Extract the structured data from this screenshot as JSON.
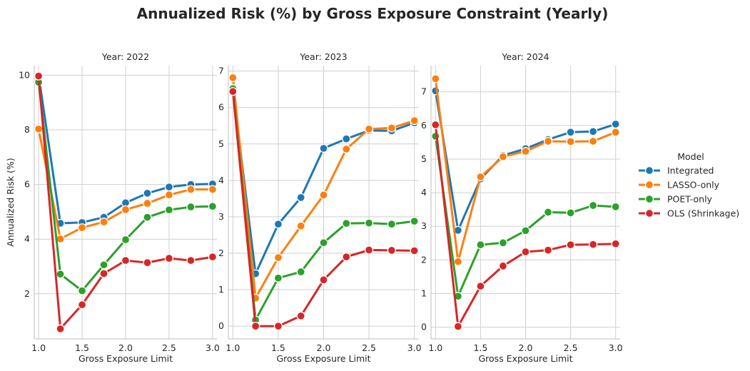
{
  "title": "Annualized Risk (%) by Gross Exposure Constraint (Yearly)",
  "legend": {
    "title": "Model"
  },
  "chart_data": [
    {
      "type": "line",
      "title": "Year: 2022",
      "xlabel": "Gross Exposure Limit",
      "ylabel": "Annualized Risk (%)",
      "x": [
        1.0,
        1.25,
        1.5,
        1.75,
        2.0,
        2.25,
        2.5,
        2.75,
        3.0
      ],
      "xlim": [
        0.95,
        3.05
      ],
      "ylim": [
        0.35,
        10.35
      ],
      "xticks": [
        1.0,
        1.5,
        2.0,
        2.5,
        3.0
      ],
      "xtick_labels": [
        "1.0",
        "1.5",
        "2.0",
        "2.5",
        "3.0"
      ],
      "yticks": [
        2,
        4,
        6,
        8,
        10
      ],
      "ytick_labels": [
        "2",
        "4",
        "6",
        "8",
        "10"
      ],
      "series": [
        {
          "name": "Integrated",
          "color": "#1f77b4",
          "values": [
            10.0,
            4.58,
            4.61,
            4.8,
            5.33,
            5.68,
            5.91,
            6.0,
            6.02
          ]
        },
        {
          "name": "LASSO-only",
          "color": "#ff7f0e",
          "values": [
            8.03,
            4.01,
            4.42,
            4.63,
            5.08,
            5.31,
            5.62,
            5.82,
            5.82
          ]
        },
        {
          "name": "POET-only",
          "color": "#2ca02c",
          "values": [
            9.74,
            2.72,
            2.11,
            3.06,
            3.98,
            4.8,
            5.07,
            5.18,
            5.2
          ]
        },
        {
          "name": "OLS (Shrinkage)",
          "color": "#d62728",
          "values": [
            9.97,
            0.72,
            1.6,
            2.74,
            3.22,
            3.14,
            3.3,
            3.22,
            3.35
          ]
        }
      ],
      "grid": true
    },
    {
      "type": "line",
      "title": "Year: 2023",
      "xlabel": "Gross Exposure Limit",
      "ylabel": "",
      "x": [
        1.0,
        1.25,
        1.5,
        1.75,
        2.0,
        2.25,
        2.5,
        2.75,
        3.0
      ],
      "xlim": [
        0.95,
        3.05
      ],
      "ylim": [
        -0.35,
        7.15
      ],
      "xticks": [
        1.0,
        1.5,
        2.0,
        2.5,
        3.0
      ],
      "xtick_labels": [
        "1.0",
        "1.5",
        "2.0",
        "2.5",
        "3.0"
      ],
      "yticks": [
        0,
        1,
        2,
        3,
        4,
        5,
        6,
        7
      ],
      "ytick_labels": [
        "0",
        "1",
        "2",
        "3",
        "4",
        "5",
        "6",
        "7"
      ],
      "series": [
        {
          "name": "Integrated",
          "color": "#1f77b4",
          "values": [
            6.5,
            1.44,
            2.8,
            3.53,
            4.88,
            5.14,
            5.37,
            5.36,
            5.58
          ]
        },
        {
          "name": "LASSO-only",
          "color": "#ff7f0e",
          "values": [
            6.82,
            0.77,
            1.88,
            2.75,
            3.6,
            4.86,
            5.41,
            5.44,
            5.64
          ]
        },
        {
          "name": "POET-only",
          "color": "#2ca02c",
          "values": [
            6.52,
            0.17,
            1.32,
            1.49,
            2.29,
            2.82,
            2.83,
            2.8,
            2.88
          ]
        },
        {
          "name": "OLS (Shrinkage)",
          "color": "#d62728",
          "values": [
            6.44,
            0.0,
            0.0,
            0.28,
            1.27,
            1.9,
            2.09,
            2.08,
            2.07
          ]
        }
      ],
      "grid": true
    },
    {
      "type": "line",
      "title": "Year: 2024",
      "xlabel": "Gross Exposure Limit",
      "ylabel": "",
      "x": [
        1.0,
        1.25,
        1.5,
        1.75,
        2.0,
        2.25,
        2.5,
        2.75,
        3.0
      ],
      "xlim": [
        0.95,
        3.05
      ],
      "ylim": [
        -0.35,
        7.78
      ],
      "xticks": [
        1.0,
        1.5,
        2.0,
        2.5,
        3.0
      ],
      "xtick_labels": [
        "1.0",
        "1.5",
        "2.0",
        "2.5",
        "3.0"
      ],
      "yticks": [
        0,
        1,
        2,
        3,
        4,
        5,
        6,
        7
      ],
      "ytick_labels": [
        "0",
        "1",
        "2",
        "3",
        "4",
        "5",
        "6",
        "7"
      ],
      "series": [
        {
          "name": "Integrated",
          "color": "#1f77b4",
          "values": [
            7.03,
            2.88,
            4.41,
            5.11,
            5.31,
            5.58,
            5.8,
            5.82,
            6.04
          ]
        },
        {
          "name": "LASSO-only",
          "color": "#ff7f0e",
          "values": [
            7.39,
            1.95,
            4.47,
            5.07,
            5.23,
            5.53,
            5.52,
            5.53,
            5.8
          ]
        },
        {
          "name": "POET-only",
          "color": "#2ca02c",
          "values": [
            5.68,
            0.92,
            2.45,
            2.51,
            2.87,
            3.42,
            3.4,
            3.62,
            3.58
          ]
        },
        {
          "name": "OLS (Shrinkage)",
          "color": "#d62728",
          "values": [
            6.02,
            0.02,
            1.22,
            1.82,
            2.24,
            2.29,
            2.45,
            2.46,
            2.48
          ]
        }
      ],
      "grid": true
    }
  ]
}
